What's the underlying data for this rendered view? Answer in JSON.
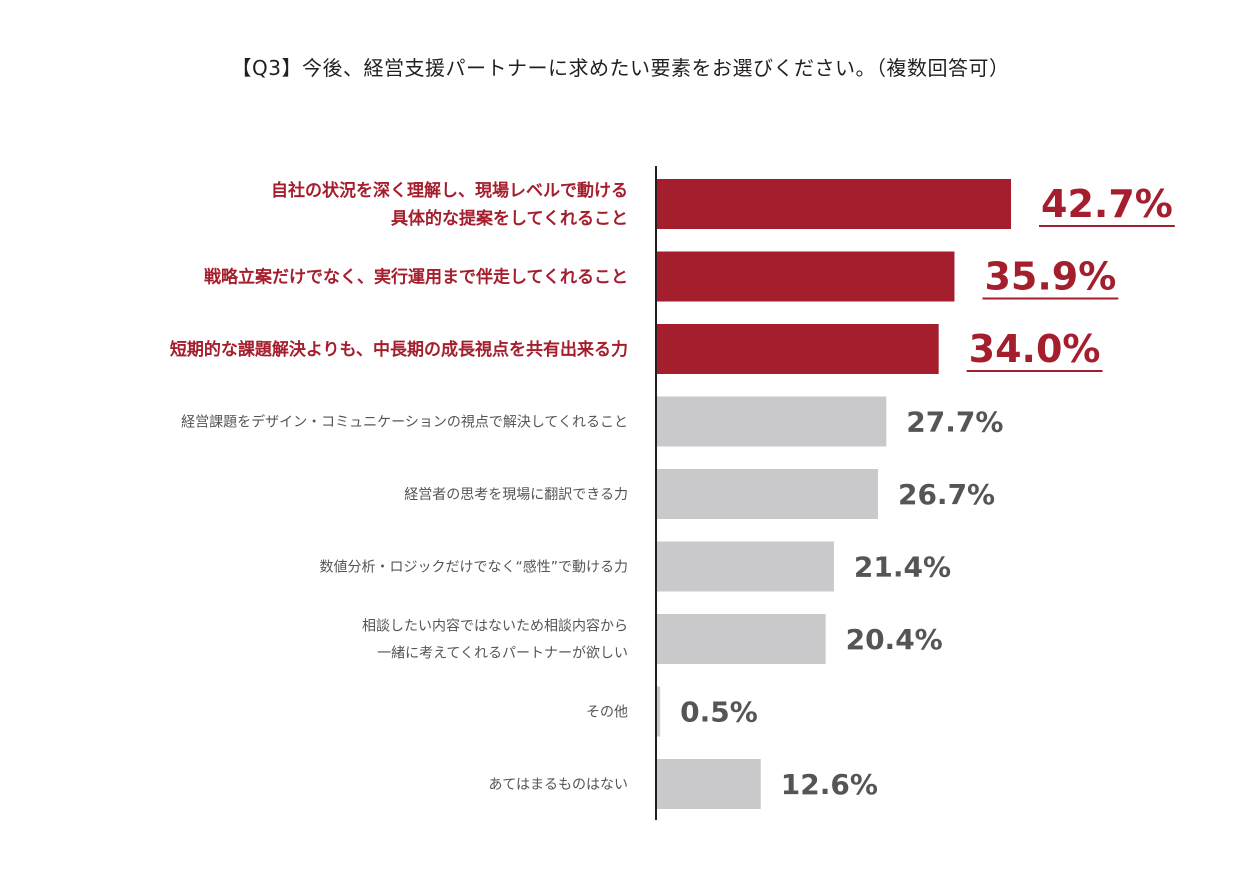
{
  "chart_data": {
    "type": "bar",
    "orientation": "horizontal",
    "title": "【Q3】今後、経営支援パートナーに求めたい要素をお選びください。（複数回答可）",
    "categories": [
      "自社の状況を深く理解し、現場レベルで動ける\n具体的な提案をしてくれること",
      "戦略立案だけでなく、実行運用まで伴走してくれること",
      "短期的な課題解決よりも、中長期の成長視点を共有出来る力",
      "経営課題をデザイン・コミュニケーションの視点で解決してくれること",
      "経営者の思考を現場に翻訳できる力",
      "数値分析・ロジックだけでなく“感性”で動ける力",
      "相談したい内容ではないため相談内容から\n一緒に考えてくれるパートナーが欲しい",
      "その他",
      "あてはまるものはない"
    ],
    "values": [
      42.7,
      35.9,
      34.0,
      27.7,
      26.7,
      21.4,
      20.4,
      0.5,
      12.6
    ],
    "value_labels": [
      "42.7%",
      "35.9%",
      "34.0%",
      "27.7%",
      "26.7%",
      "21.4%",
      "20.4%",
      "0.5%",
      "12.6%"
    ],
    "highlight_count": 3,
    "xlim": [
      0,
      42.7
    ],
    "colors": {
      "highlight": "#a51e2e",
      "normal": "#c9c9cb",
      "highlight_text": "#a51e2e",
      "normal_text": "#555555",
      "axis": "#231f20"
    },
    "legend": "none",
    "grid": false
  }
}
